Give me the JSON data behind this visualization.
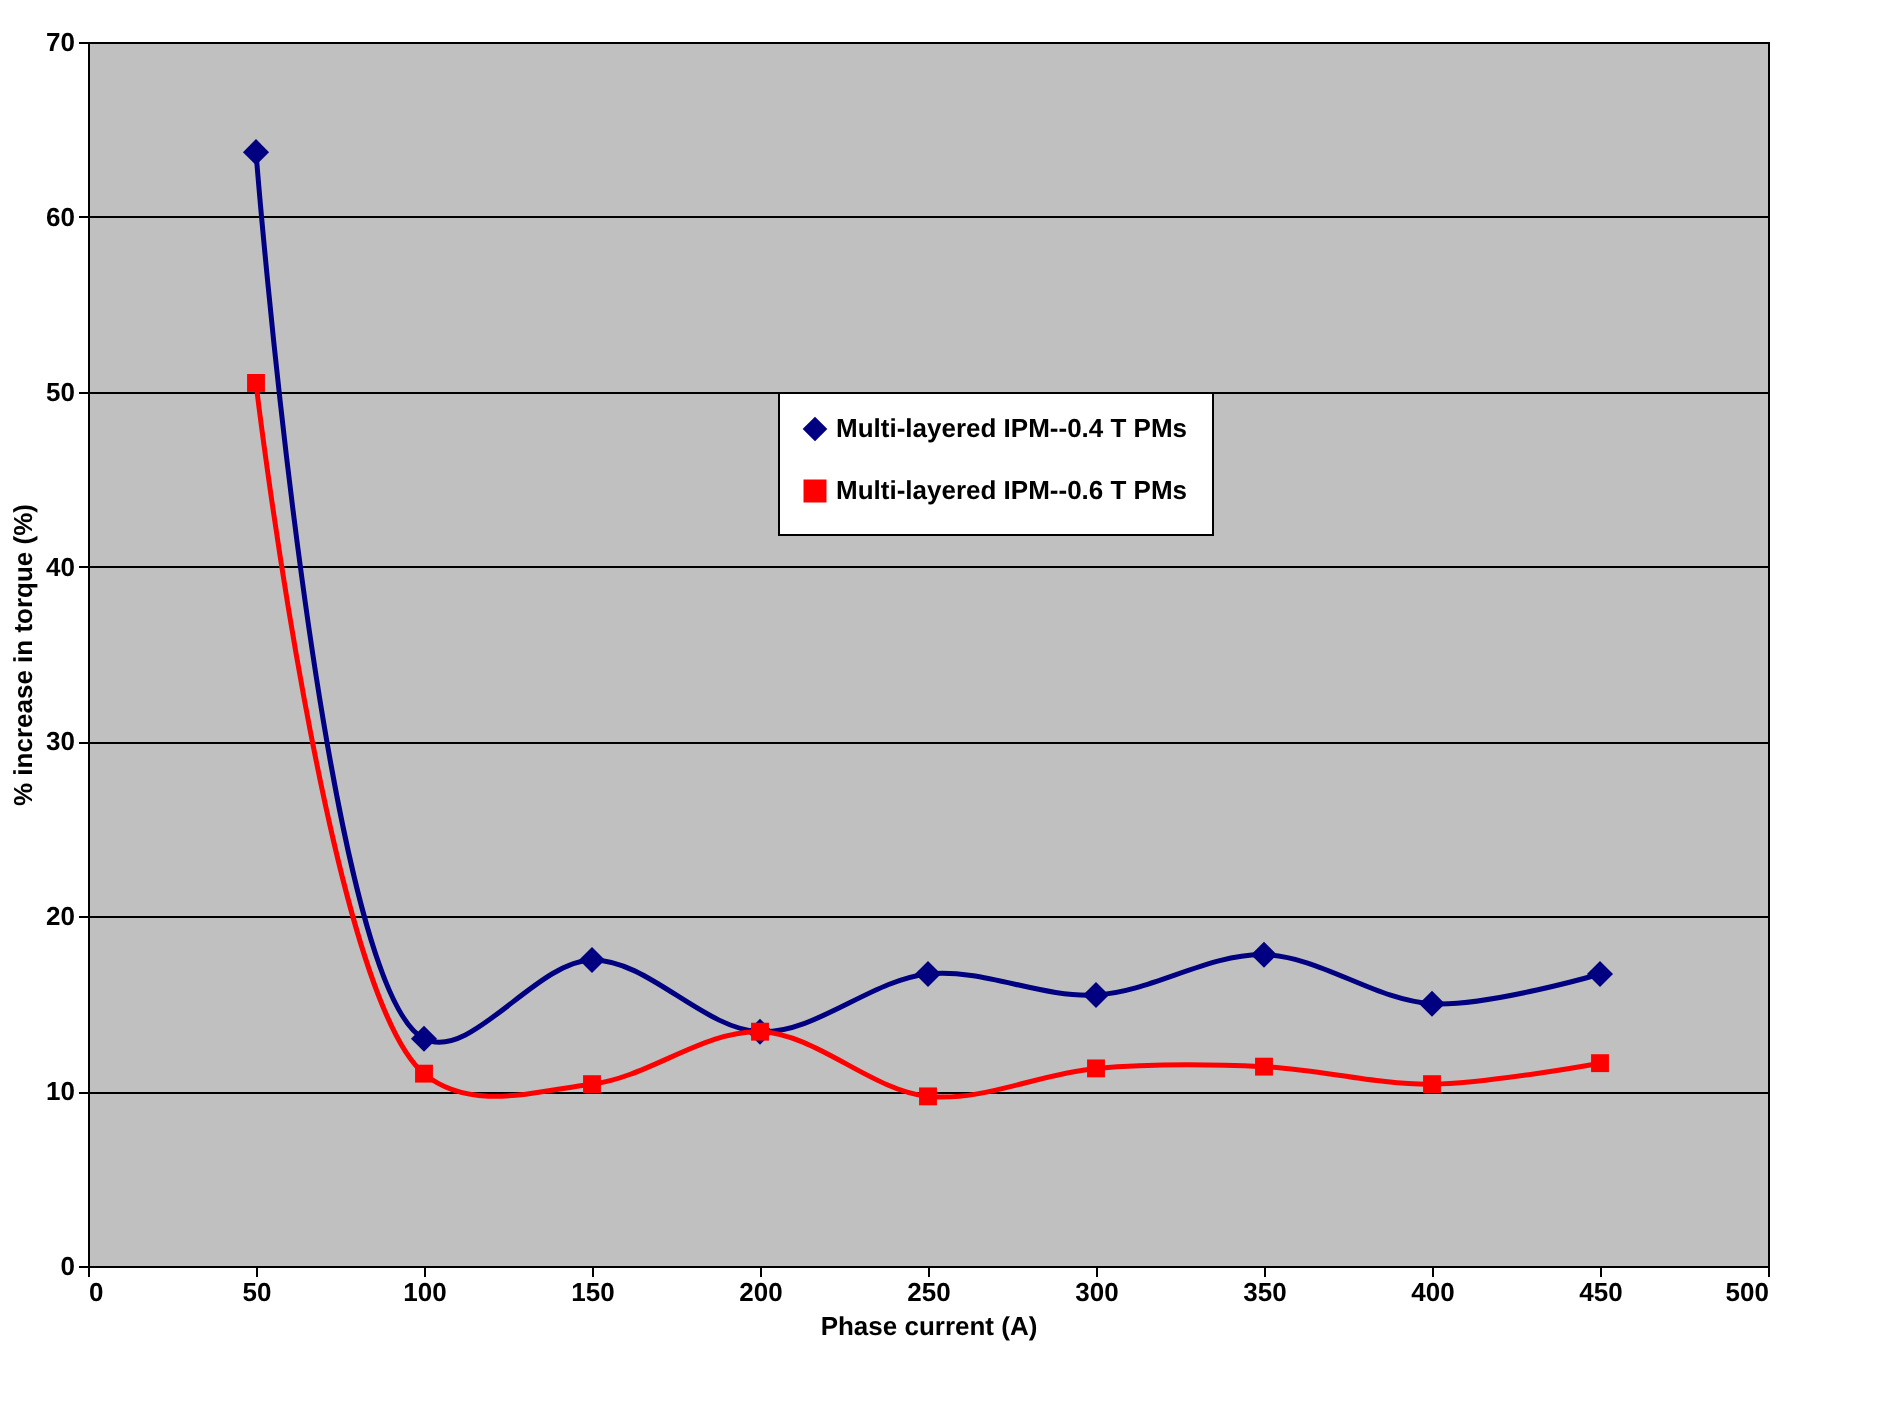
{
  "chart_data": {
    "type": "line",
    "xlabel": "Phase current (A)",
    "ylabel": "% increase in torque (%)",
    "x": [
      50,
      100,
      150,
      200,
      250,
      300,
      350,
      400,
      450
    ],
    "series": [
      {
        "name": "Multi-layered IPM--0.4 T PMs",
        "color": "#000080",
        "marker": "diamond",
        "values": [
          63.7,
          13.0,
          17.5,
          13.4,
          16.7,
          15.5,
          17.8,
          15.0,
          16.7
        ]
      },
      {
        "name": "Multi-layered IPM--0.6 T PMs",
        "color": "#ff0000",
        "marker": "square",
        "values": [
          50.5,
          11.0,
          10.4,
          13.4,
          9.7,
          11.3,
          11.4,
          10.4,
          11.6
        ]
      }
    ],
    "xlim": [
      0,
      500
    ],
    "xticks": [
      0,
      50,
      100,
      150,
      200,
      250,
      300,
      350,
      400,
      450,
      500
    ],
    "ylim": [
      0,
      70
    ],
    "yticks": [
      0,
      10,
      20,
      30,
      40,
      50,
      60,
      70
    ],
    "grid": "y",
    "legend": "top right",
    "line_style": "solid"
  }
}
